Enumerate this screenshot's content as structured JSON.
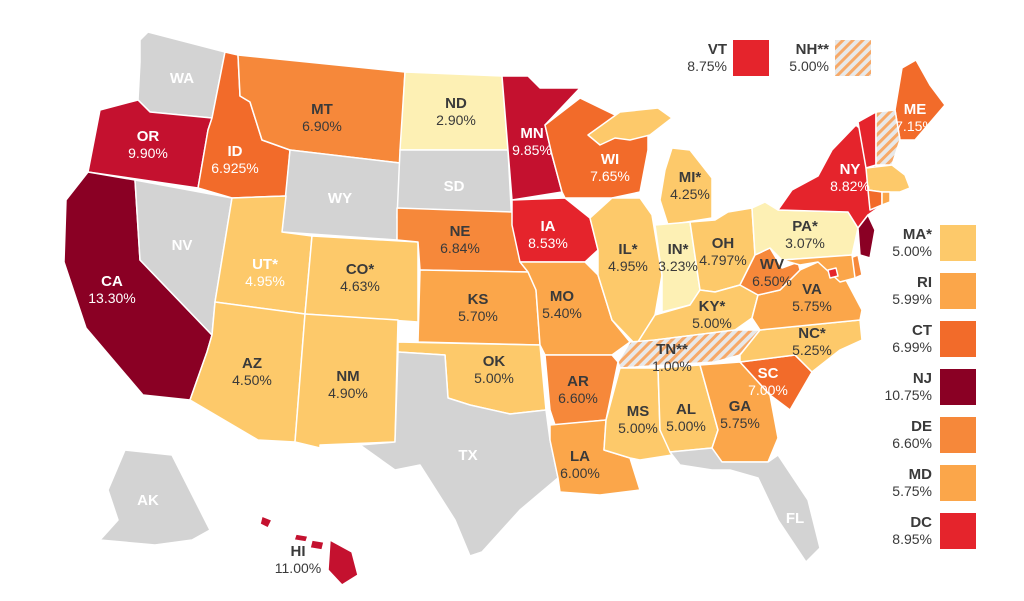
{
  "colors": {
    "none": "#d3d3d3",
    "c1": "#fdf0b4",
    "c2": "#fdc96a",
    "c3": "#fba64a",
    "c4": "#f6883a",
    "c5": "#f26b2a",
    "c6": "#e5242c",
    "c7": "#c4112f",
    "c8": "#8a0024",
    "hatch_stripe": "#f7a968",
    "hatch_bg": "#e8e8e8"
  },
  "states": [
    {
      "abbr": "WA",
      "rate": "",
      "cls": "none"
    },
    {
      "abbr": "OR",
      "rate": "9.90%",
      "cls": "c7"
    },
    {
      "abbr": "CA",
      "rate": "13.30%",
      "cls": "c8"
    },
    {
      "abbr": "NV",
      "rate": "",
      "cls": "none"
    },
    {
      "abbr": "ID",
      "rate": "6.925%",
      "cls": "c5"
    },
    {
      "abbr": "MT",
      "rate": "6.90%",
      "cls": "c4"
    },
    {
      "abbr": "WY",
      "rate": "",
      "cls": "none"
    },
    {
      "abbr": "UT*",
      "rate": "4.95%",
      "cls": "c2"
    },
    {
      "abbr": "AZ",
      "rate": "4.50%",
      "cls": "c2"
    },
    {
      "abbr": "CO*",
      "rate": "4.63%",
      "cls": "c2"
    },
    {
      "abbr": "NM",
      "rate": "4.90%",
      "cls": "c2"
    },
    {
      "abbr": "ND",
      "rate": "2.90%",
      "cls": "c1"
    },
    {
      "abbr": "SD",
      "rate": "",
      "cls": "none"
    },
    {
      "abbr": "NE",
      "rate": "6.84%",
      "cls": "c4"
    },
    {
      "abbr": "KS",
      "rate": "5.70%",
      "cls": "c3"
    },
    {
      "abbr": "OK",
      "rate": "5.00%",
      "cls": "c2"
    },
    {
      "abbr": "TX",
      "rate": "",
      "cls": "none"
    },
    {
      "abbr": "MN",
      "rate": "9.85%",
      "cls": "c7"
    },
    {
      "abbr": "IA",
      "rate": "8.53%",
      "cls": "c6"
    },
    {
      "abbr": "MO",
      "rate": "5.40%",
      "cls": "c3"
    },
    {
      "abbr": "AR",
      "rate": "6.60%",
      "cls": "c4"
    },
    {
      "abbr": "LA",
      "rate": "6.00%",
      "cls": "c3"
    },
    {
      "abbr": "WI",
      "rate": "7.65%",
      "cls": "c5"
    },
    {
      "abbr": "IL*",
      "rate": "4.95%",
      "cls": "c2"
    },
    {
      "abbr": "MI*",
      "rate": "4.25%",
      "cls": "c2"
    },
    {
      "abbr": "IN*",
      "rate": "3.23%",
      "cls": "c1"
    },
    {
      "abbr": "OH",
      "rate": "4.797%",
      "cls": "c2"
    },
    {
      "abbr": "KY*",
      "rate": "5.00%",
      "cls": "c2"
    },
    {
      "abbr": "TN**",
      "rate": "1.00%",
      "cls": "hatch"
    },
    {
      "abbr": "MS",
      "rate": "5.00%",
      "cls": "c2"
    },
    {
      "abbr": "AL",
      "rate": "5.00%",
      "cls": "c2"
    },
    {
      "abbr": "GA",
      "rate": "5.75%",
      "cls": "c3"
    },
    {
      "abbr": "FL",
      "rate": "",
      "cls": "none"
    },
    {
      "abbr": "SC",
      "rate": "7.00%",
      "cls": "c5"
    },
    {
      "abbr": "NC*",
      "rate": "5.25%",
      "cls": "c2"
    },
    {
      "abbr": "VA",
      "rate": "5.75%",
      "cls": "c3"
    },
    {
      "abbr": "WV",
      "rate": "6.50%",
      "cls": "c4"
    },
    {
      "abbr": "PA*",
      "rate": "3.07%",
      "cls": "c1"
    },
    {
      "abbr": "NY",
      "rate": "8.82%",
      "cls": "c6"
    },
    {
      "abbr": "ME",
      "rate": "7.15%",
      "cls": "c5"
    },
    {
      "abbr": "AK",
      "rate": "",
      "cls": "none"
    },
    {
      "abbr": "HI",
      "rate": "11.00%",
      "cls": "c7"
    }
  ],
  "callouts": [
    {
      "abbr": "VT",
      "rate": "8.75%",
      "cls": "c6"
    },
    {
      "abbr": "NH**",
      "rate": "5.00%",
      "cls": "hatch"
    }
  ],
  "legend": [
    {
      "abbr": "MA*",
      "rate": "5.00%",
      "cls": "c2"
    },
    {
      "abbr": "RI",
      "rate": "5.99%",
      "cls": "c3"
    },
    {
      "abbr": "CT",
      "rate": "6.99%",
      "cls": "c5"
    },
    {
      "abbr": "NJ",
      "rate": "10.75%",
      "cls": "c8"
    },
    {
      "abbr": "DE",
      "rate": "6.60%",
      "cls": "c4"
    },
    {
      "abbr": "MD",
      "rate": "5.75%",
      "cls": "c3"
    },
    {
      "abbr": "DC",
      "rate": "8.95%",
      "cls": "c6"
    }
  ]
}
